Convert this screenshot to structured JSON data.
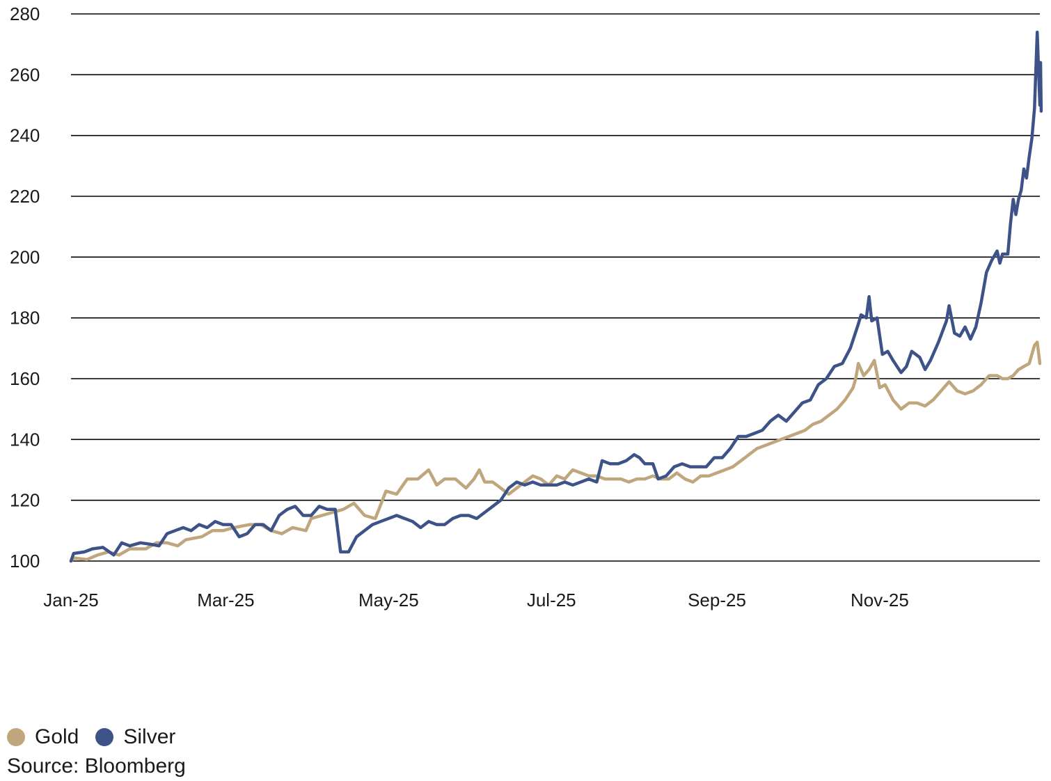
{
  "chart_data": {
    "type": "line",
    "title": "",
    "xlabel": "",
    "ylabel": "",
    "ylim": [
      100,
      280
    ],
    "y_ticks": [
      100,
      120,
      140,
      160,
      180,
      200,
      220,
      240,
      260,
      280
    ],
    "x_ticks": [
      {
        "label": "Jan-25",
        "date": "2025-01-02"
      },
      {
        "label": "Mar-25",
        "date": "2025-03-01"
      },
      {
        "label": "May-25",
        "date": "2025-05-01"
      },
      {
        "label": "Jul-25",
        "date": "2025-07-01"
      },
      {
        "label": "Sep-25",
        "date": "2025-09-01"
      },
      {
        "label": "Nov-25",
        "date": "2025-11-01"
      }
    ],
    "xlim": [
      "2025-01-02",
      "2025-12-31"
    ],
    "grid": "horizontal",
    "legend_position": "bottom-left",
    "series": [
      {
        "name": "Gold",
        "color": "#bfa67c",
        "points": [
          [
            "2025-01-02",
            100
          ],
          [
            "2025-01-03",
            101
          ],
          [
            "2025-01-08",
            100.5
          ],
          [
            "2025-01-12",
            102
          ],
          [
            "2025-01-16",
            103
          ],
          [
            "2025-01-20",
            102
          ],
          [
            "2025-01-24",
            104
          ],
          [
            "2025-01-30",
            104
          ],
          [
            "2025-02-03",
            106
          ],
          [
            "2025-02-07",
            106
          ],
          [
            "2025-02-11",
            105
          ],
          [
            "2025-02-14",
            107
          ],
          [
            "2025-02-20",
            108
          ],
          [
            "2025-02-24",
            110
          ],
          [
            "2025-02-28",
            110
          ],
          [
            "2025-03-04",
            111
          ],
          [
            "2025-03-10",
            112
          ],
          [
            "2025-03-14",
            112
          ],
          [
            "2025-03-18",
            110
          ],
          [
            "2025-03-22",
            109
          ],
          [
            "2025-03-26",
            111
          ],
          [
            "2025-03-31",
            110
          ],
          [
            "2025-04-02",
            114
          ],
          [
            "2025-04-06",
            115
          ],
          [
            "2025-04-10",
            116
          ],
          [
            "2025-04-14",
            117
          ],
          [
            "2025-04-18",
            119
          ],
          [
            "2025-04-22",
            115
          ],
          [
            "2025-04-26",
            114
          ],
          [
            "2025-04-30",
            123
          ],
          [
            "2025-05-04",
            122
          ],
          [
            "2025-05-08",
            127
          ],
          [
            "2025-05-12",
            127
          ],
          [
            "2025-05-16",
            130
          ],
          [
            "2025-05-19",
            125
          ],
          [
            "2025-05-22",
            127
          ],
          [
            "2025-05-26",
            127
          ],
          [
            "2025-05-30",
            124
          ],
          [
            "2025-06-02",
            127
          ],
          [
            "2025-06-04",
            130
          ],
          [
            "2025-06-06",
            126
          ],
          [
            "2025-06-09",
            126
          ],
          [
            "2025-06-12",
            124
          ],
          [
            "2025-06-15",
            122
          ],
          [
            "2025-06-18",
            124
          ],
          [
            "2025-06-21",
            126
          ],
          [
            "2025-06-24",
            128
          ],
          [
            "2025-06-27",
            127
          ],
          [
            "2025-06-30",
            125
          ],
          [
            "2025-07-03",
            128
          ],
          [
            "2025-07-06",
            127
          ],
          [
            "2025-07-09",
            130
          ],
          [
            "2025-07-12",
            129
          ],
          [
            "2025-07-15",
            128
          ],
          [
            "2025-07-18",
            128
          ],
          [
            "2025-07-21",
            127
          ],
          [
            "2025-07-24",
            127
          ],
          [
            "2025-07-27",
            127
          ],
          [
            "2025-07-30",
            126
          ],
          [
            "2025-08-02",
            127
          ],
          [
            "2025-08-05",
            127
          ],
          [
            "2025-08-08",
            128
          ],
          [
            "2025-08-11",
            127
          ],
          [
            "2025-08-14",
            127
          ],
          [
            "2025-08-17",
            129
          ],
          [
            "2025-08-20",
            127
          ],
          [
            "2025-08-23",
            126
          ],
          [
            "2025-08-26",
            128
          ],
          [
            "2025-08-29",
            128
          ],
          [
            "2025-09-01",
            129
          ],
          [
            "2025-09-04",
            130
          ],
          [
            "2025-09-07",
            131
          ],
          [
            "2025-09-10",
            133
          ],
          [
            "2025-09-13",
            135
          ],
          [
            "2025-09-16",
            137
          ],
          [
            "2025-09-19",
            138
          ],
          [
            "2025-09-22",
            139
          ],
          [
            "2025-09-25",
            140
          ],
          [
            "2025-09-28",
            141
          ],
          [
            "2025-10-01",
            142
          ],
          [
            "2025-10-04",
            143
          ],
          [
            "2025-10-07",
            145
          ],
          [
            "2025-10-10",
            146
          ],
          [
            "2025-10-13",
            148
          ],
          [
            "2025-10-16",
            150
          ],
          [
            "2025-10-19",
            153
          ],
          [
            "2025-10-22",
            157
          ],
          [
            "2025-10-23",
            160
          ],
          [
            "2025-10-24",
            165
          ],
          [
            "2025-10-26",
            161
          ],
          [
            "2025-10-28",
            163
          ],
          [
            "2025-10-30",
            166
          ],
          [
            "2025-11-01",
            157
          ],
          [
            "2025-11-03",
            158
          ],
          [
            "2025-11-06",
            153
          ],
          [
            "2025-11-09",
            150
          ],
          [
            "2025-11-12",
            152
          ],
          [
            "2025-11-15",
            152
          ],
          [
            "2025-11-18",
            151
          ],
          [
            "2025-11-21",
            153
          ],
          [
            "2025-11-24",
            156
          ],
          [
            "2025-11-27",
            159
          ],
          [
            "2025-11-30",
            156
          ],
          [
            "2025-12-03",
            155
          ],
          [
            "2025-12-06",
            156
          ],
          [
            "2025-12-09",
            158
          ],
          [
            "2025-12-12",
            161
          ],
          [
            "2025-12-15",
            161
          ],
          [
            "2025-12-17",
            160
          ],
          [
            "2025-12-19",
            160
          ],
          [
            "2025-12-21",
            161
          ],
          [
            "2025-12-23",
            163
          ],
          [
            "2025-12-25",
            164
          ],
          [
            "2025-12-27",
            165
          ],
          [
            "2025-12-29",
            171
          ],
          [
            "2025-12-30",
            172
          ],
          [
            "2025-12-31",
            165
          ]
        ]
      },
      {
        "name": "Silver",
        "color": "#3d5388",
        "points": [
          [
            "2025-01-02",
            100
          ],
          [
            "2025-01-03",
            102.5
          ],
          [
            "2025-01-07",
            103
          ],
          [
            "2025-01-10",
            104
          ],
          [
            "2025-01-14",
            104.5
          ],
          [
            "2025-01-18",
            102
          ],
          [
            "2025-01-21",
            106
          ],
          [
            "2025-01-24",
            105
          ],
          [
            "2025-01-28",
            106
          ],
          [
            "2025-02-01",
            105.5
          ],
          [
            "2025-02-04",
            105
          ],
          [
            "2025-02-07",
            109
          ],
          [
            "2025-02-10",
            110
          ],
          [
            "2025-02-13",
            111
          ],
          [
            "2025-02-16",
            110
          ],
          [
            "2025-02-19",
            112
          ],
          [
            "2025-02-22",
            111
          ],
          [
            "2025-02-25",
            113
          ],
          [
            "2025-02-28",
            112
          ],
          [
            "2025-03-03",
            112
          ],
          [
            "2025-03-06",
            108
          ],
          [
            "2025-03-09",
            109
          ],
          [
            "2025-03-12",
            112
          ],
          [
            "2025-03-15",
            112
          ],
          [
            "2025-03-18",
            110
          ],
          [
            "2025-03-21",
            115
          ],
          [
            "2025-03-24",
            117
          ],
          [
            "2025-03-27",
            118
          ],
          [
            "2025-03-30",
            115
          ],
          [
            "2025-04-02",
            115
          ],
          [
            "2025-04-05",
            118
          ],
          [
            "2025-04-08",
            117
          ],
          [
            "2025-04-11",
            117
          ],
          [
            "2025-04-13",
            103
          ],
          [
            "2025-04-16",
            103
          ],
          [
            "2025-04-19",
            108
          ],
          [
            "2025-04-22",
            110
          ],
          [
            "2025-04-25",
            112
          ],
          [
            "2025-04-28",
            113
          ],
          [
            "2025-05-01",
            114
          ],
          [
            "2025-05-04",
            115
          ],
          [
            "2025-05-07",
            114
          ],
          [
            "2025-05-10",
            113
          ],
          [
            "2025-05-13",
            111
          ],
          [
            "2025-05-16",
            113
          ],
          [
            "2025-05-19",
            112
          ],
          [
            "2025-05-22",
            112
          ],
          [
            "2025-05-25",
            114
          ],
          [
            "2025-05-28",
            115
          ],
          [
            "2025-05-31",
            115
          ],
          [
            "2025-06-03",
            114
          ],
          [
            "2025-06-06",
            116
          ],
          [
            "2025-06-09",
            118
          ],
          [
            "2025-06-12",
            120
          ],
          [
            "2025-06-15",
            124
          ],
          [
            "2025-06-18",
            126
          ],
          [
            "2025-06-21",
            125
          ],
          [
            "2025-06-24",
            126
          ],
          [
            "2025-06-27",
            125
          ],
          [
            "2025-06-30",
            125
          ],
          [
            "2025-07-03",
            125
          ],
          [
            "2025-07-06",
            126
          ],
          [
            "2025-07-09",
            125
          ],
          [
            "2025-07-12",
            126
          ],
          [
            "2025-07-15",
            127
          ],
          [
            "2025-07-18",
            126
          ],
          [
            "2025-07-20",
            133
          ],
          [
            "2025-07-23",
            132
          ],
          [
            "2025-07-26",
            132
          ],
          [
            "2025-07-29",
            133
          ],
          [
            "2025-08-01",
            135
          ],
          [
            "2025-08-03",
            134
          ],
          [
            "2025-08-05",
            132
          ],
          [
            "2025-08-08",
            132
          ],
          [
            "2025-08-10",
            127
          ],
          [
            "2025-08-13",
            128
          ],
          [
            "2025-08-16",
            131
          ],
          [
            "2025-08-19",
            132
          ],
          [
            "2025-08-22",
            131
          ],
          [
            "2025-08-25",
            131
          ],
          [
            "2025-08-28",
            131
          ],
          [
            "2025-08-31",
            134
          ],
          [
            "2025-09-03",
            134
          ],
          [
            "2025-09-06",
            137
          ],
          [
            "2025-09-09",
            141
          ],
          [
            "2025-09-12",
            141
          ],
          [
            "2025-09-15",
            142
          ],
          [
            "2025-09-18",
            143
          ],
          [
            "2025-09-21",
            146
          ],
          [
            "2025-09-24",
            148
          ],
          [
            "2025-09-27",
            146
          ],
          [
            "2025-09-30",
            149
          ],
          [
            "2025-10-03",
            152
          ],
          [
            "2025-10-06",
            153
          ],
          [
            "2025-10-09",
            158
          ],
          [
            "2025-10-12",
            160
          ],
          [
            "2025-10-15",
            164
          ],
          [
            "2025-10-18",
            165
          ],
          [
            "2025-10-21",
            170
          ],
          [
            "2025-10-24",
            178
          ],
          [
            "2025-10-25",
            181
          ],
          [
            "2025-10-27",
            180
          ],
          [
            "2025-10-28",
            187
          ],
          [
            "2025-10-29",
            179
          ],
          [
            "2025-10-31",
            180
          ],
          [
            "2025-11-02",
            168
          ],
          [
            "2025-11-04",
            169
          ],
          [
            "2025-11-06",
            166
          ],
          [
            "2025-11-09",
            162
          ],
          [
            "2025-11-11",
            164
          ],
          [
            "2025-11-13",
            169
          ],
          [
            "2025-11-16",
            167
          ],
          [
            "2025-11-18",
            163
          ],
          [
            "2025-11-20",
            166
          ],
          [
            "2025-11-23",
            172
          ],
          [
            "2025-11-26",
            179
          ],
          [
            "2025-11-27",
            184
          ],
          [
            "2025-11-29",
            175
          ],
          [
            "2025-12-01",
            174
          ],
          [
            "2025-12-03",
            177
          ],
          [
            "2025-12-05",
            173
          ],
          [
            "2025-12-07",
            177
          ],
          [
            "2025-12-09",
            185
          ],
          [
            "2025-12-11",
            195
          ],
          [
            "2025-12-13",
            199
          ],
          [
            "2025-12-15",
            202
          ],
          [
            "2025-12-16",
            198
          ],
          [
            "2025-12-17",
            201
          ],
          [
            "2025-12-19",
            201
          ],
          [
            "2025-12-20",
            211
          ],
          [
            "2025-12-21",
            219
          ],
          [
            "2025-12-22",
            214
          ],
          [
            "2025-12-23",
            219
          ],
          [
            "2025-12-24",
            222
          ],
          [
            "2025-12-25",
            229
          ],
          [
            "2025-12-26",
            226
          ],
          [
            "2025-12-27",
            233
          ],
          [
            "2025-12-28",
            239
          ],
          [
            "2025-12-29",
            249
          ],
          [
            "2025-12-30",
            274
          ],
          [
            "2025-12-30T12:00",
            262
          ],
          [
            "2025-12-31",
            250
          ],
          [
            "2025-12-31T06:00",
            264
          ],
          [
            "2025-12-31T12:00",
            248
          ]
        ]
      }
    ],
    "source": "Source: Bloomberg"
  }
}
